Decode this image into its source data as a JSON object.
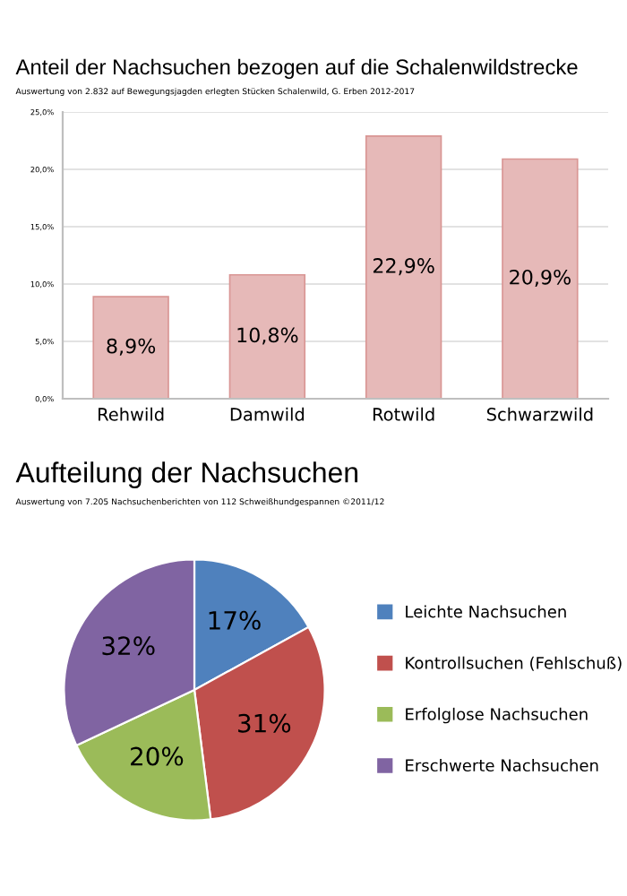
{
  "chart_data": [
    {
      "type": "bar",
      "title": "Anteil der Nachsuchen bezogen auf die Schalenwildstrecke",
      "subtitle": "Auswertung von 2.832 auf Bewegungsjagden erlegten Stücken Schalenwild, G. Erben 2012-2017",
      "categories": [
        "Rehwild",
        "Damwild",
        "Rotwild",
        "Schwarzwild"
      ],
      "values": [
        8.9,
        10.8,
        22.9,
        20.9
      ],
      "value_labels": [
        "8,9%",
        "10,8%",
        "22,9%",
        "20,9%"
      ],
      "color": "#e6b9b8",
      "ylim": [
        0,
        25
      ],
      "yticks": [
        {
          "value": 0,
          "label": "0,0%"
        },
        {
          "value": 5,
          "label": "5,0%"
        },
        {
          "value": 10,
          "label": "10,0%"
        },
        {
          "value": 15,
          "label": "15,0%"
        },
        {
          "value": 20,
          "label": "20,0%"
        },
        {
          "value": 25,
          "label": "25,0%"
        }
      ],
      "grid": "y",
      "legend": false
    },
    {
      "type": "pie",
      "title": "Aufteilung der Nachsuchen",
      "subtitle": "Auswertung von 7.205 Nachsuchenberichten von 112 Schweißhundgespannen ©2011/12",
      "categories": [
        "Leichte Nachsuchen",
        "Kontrollsuchen (Fehlschuß)",
        "Erfolglose Nachsuchen",
        "Erschwerte Nachsuchen"
      ],
      "values": [
        17,
        31,
        20,
        32
      ],
      "value_labels": [
        "17%",
        "31%",
        "20%",
        "32%"
      ],
      "colors": [
        "#4f81bd",
        "#c0504d",
        "#9bbb59",
        "#8064a2"
      ],
      "legend": "right"
    }
  ]
}
